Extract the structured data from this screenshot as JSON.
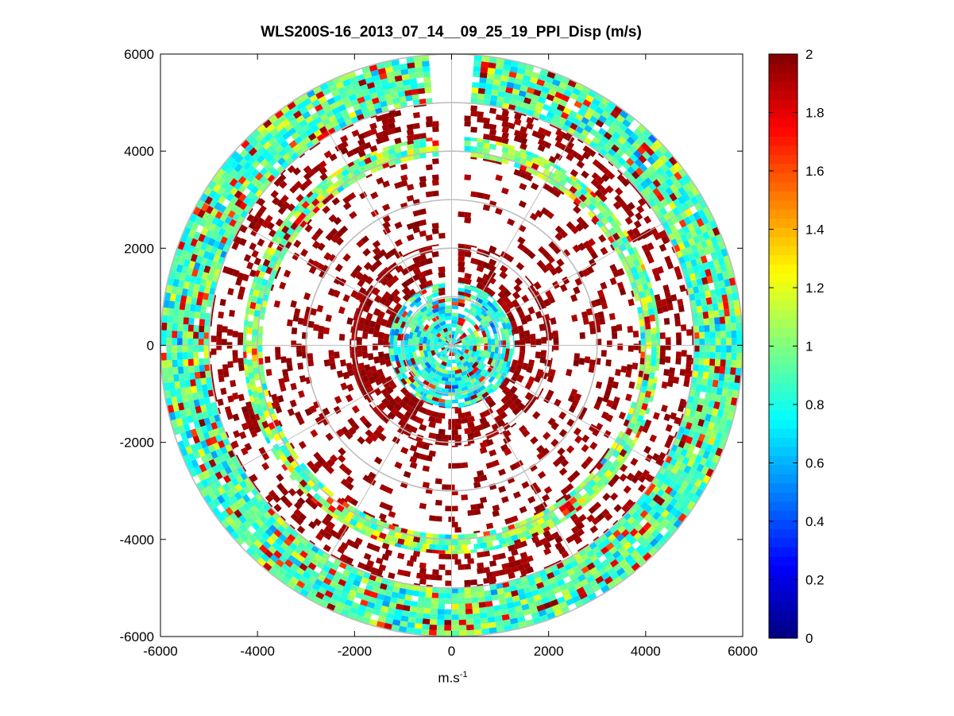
{
  "chart_data": {
    "type": "heatmap",
    "subtype": "polar PPI scan (lidar)",
    "title": "WLS200S-16_2013_07_14__09_25_19_PPI_Disp (m/s)",
    "xlabel_base": "m.s",
    "xlabel_exp": "-1",
    "ylabel": "",
    "xlim": [
      -6000,
      6000
    ],
    "ylim": [
      -6000,
      6000
    ],
    "xticks": [
      -6000,
      -4000,
      -2000,
      0,
      2000,
      4000,
      6000
    ],
    "yticks": [
      6000,
      4000,
      2000,
      0,
      -2000,
      -4000,
      -6000
    ],
    "max_range": 6000,
    "grid": true,
    "range_rings": [
      1000,
      2000,
      3000,
      4000,
      5000,
      6000
    ],
    "azimuth_spokes_deg": [
      0,
      30,
      60,
      90,
      120,
      150,
      180,
      210,
      240,
      270,
      300,
      330
    ],
    "colorbar": {
      "colormap": "jet",
      "range": [
        0,
        2
      ],
      "ticks": [
        "0",
        "0.2",
        "0.4",
        "0.6",
        "0.8",
        "1",
        "1.2",
        "1.4",
        "1.6",
        "1.8",
        "2"
      ]
    },
    "missing_sector_deg": [
      -4,
      4
    ],
    "range_bands": [
      {
        "r_min": 6000,
        "r_max": 5000,
        "dominant_value": 0.9,
        "fill_fraction": 0.97,
        "note": "outer ring, mostly cyan/green"
      },
      {
        "r_min": 5000,
        "r_max": 4300,
        "dominant_value": 1.95,
        "fill_fraction": 0.35,
        "note": "sparse, dark red"
      },
      {
        "r_min": 4300,
        "r_max": 3900,
        "dominant_value": 1.0,
        "fill_fraction": 0.9,
        "note": "mixed ring cyan/yellow/red"
      },
      {
        "r_min": 3900,
        "r_max": 2100,
        "dominant_value": 1.95,
        "fill_fraction": 0.22,
        "note": "sparse dark red"
      },
      {
        "r_min": 2100,
        "r_max": 1300,
        "dominant_value": 1.95,
        "fill_fraction": 0.5,
        "note": "dense dark red"
      },
      {
        "r_min": 1300,
        "r_max": 0,
        "dominant_value": 0.8,
        "fill_fraction": 0.85,
        "note": "core mixed blue/cyan/yellow/red"
      }
    ]
  }
}
